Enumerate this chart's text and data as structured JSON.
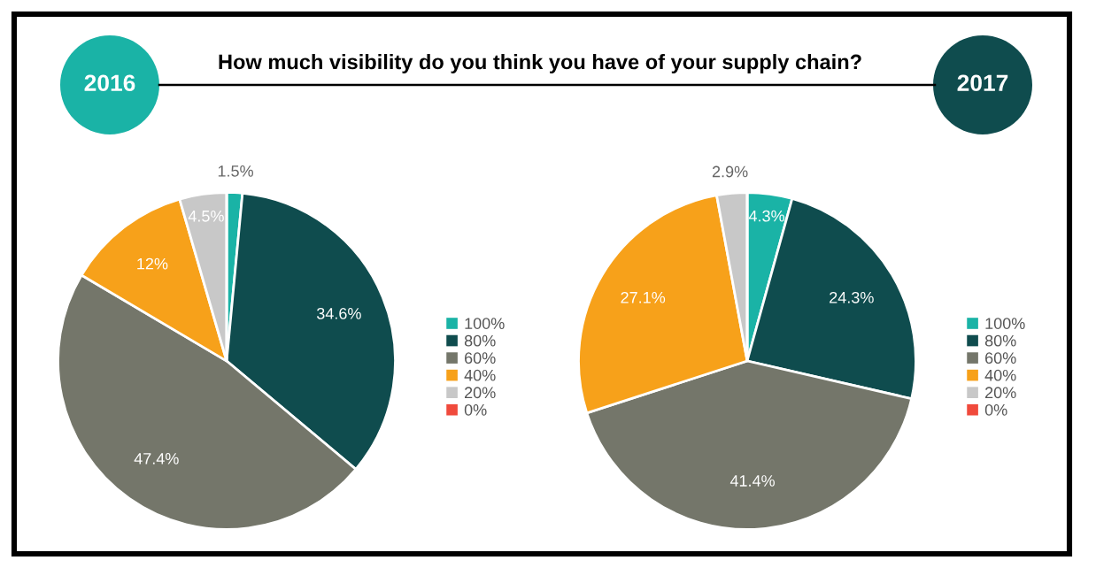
{
  "chart_data": [
    {
      "type": "pie",
      "title": "How much visibility do you think you have of your supply chain?",
      "subtitle": "2016",
      "categories": [
        "100%",
        "80%",
        "60%",
        "40%",
        "20%",
        "0%"
      ],
      "values": [
        1.5,
        34.6,
        47.4,
        12,
        4.5,
        0
      ],
      "value_labels": [
        "1.5%",
        "34.6%",
        "47.4%",
        "12%",
        "4.5%",
        null
      ],
      "colors": [
        "#1ab3a6",
        "#0f4c4e",
        "#74766a",
        "#f7a11a",
        "#c8c8c8",
        "#f04a3c"
      ],
      "legend": "right"
    },
    {
      "type": "pie",
      "subtitle": "2017",
      "categories": [
        "100%",
        "80%",
        "60%",
        "40%",
        "20%",
        "0%"
      ],
      "values": [
        4.3,
        24.3,
        41.4,
        27.1,
        2.9,
        0
      ],
      "value_labels": [
        "4.3%",
        "24.3%",
        "41.4%",
        "27.1%",
        "2.9%",
        null
      ],
      "colors": [
        "#1ab3a6",
        "#0f4c4e",
        "#74766a",
        "#f7a11a",
        "#c8c8c8",
        "#f04a3c"
      ],
      "legend": "right"
    }
  ]
}
